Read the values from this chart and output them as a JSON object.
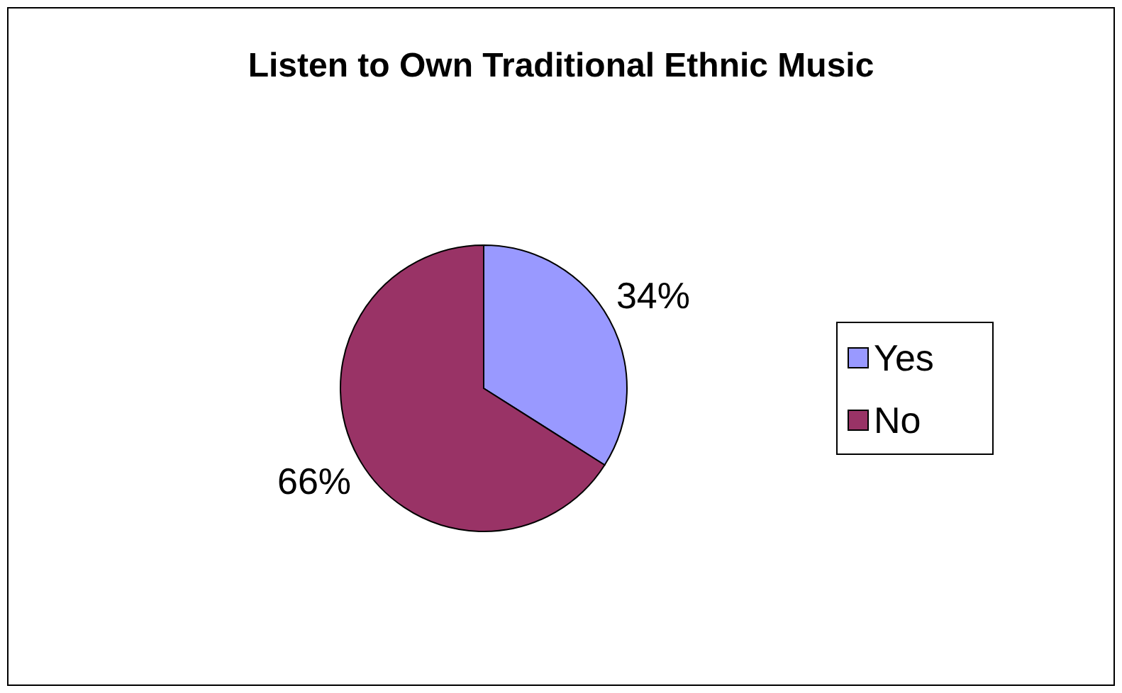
{
  "chart_data": {
    "type": "pie",
    "title": "Listen to Own Traditional Ethnic Music",
    "categories": [
      "Yes",
      "No"
    ],
    "values": [
      34,
      66
    ],
    "colors": [
      "#9999ff",
      "#993366"
    ],
    "value_labels": [
      "34%",
      "66%"
    ],
    "legend": "right"
  }
}
